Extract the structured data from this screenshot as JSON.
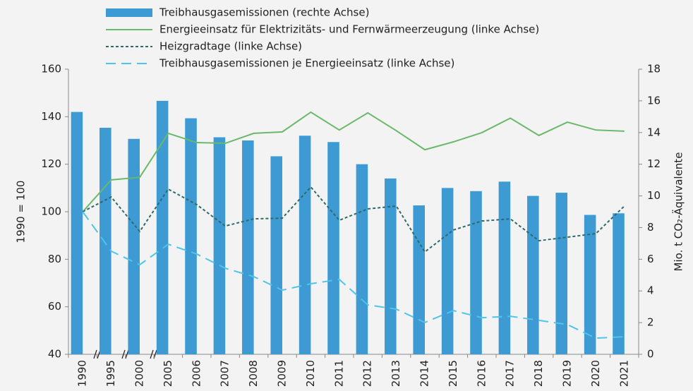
{
  "chart_data": {
    "type": "bar-line",
    "categories": [
      "1990",
      "1995",
      "2000",
      "2005",
      "2006",
      "2007",
      "2008",
      "2009",
      "2010",
      "2011",
      "2012",
      "2013",
      "2014",
      "2015",
      "2016",
      "2017",
      "2018",
      "2019",
      "2020",
      "2021"
    ],
    "series": [
      {
        "name": "Treibhausgasemissionen (rechte Achse)",
        "color": "#3d9ad3",
        "style": "bar",
        "axis": "y2",
        "values": [
          15.3,
          14.3,
          13.6,
          16.0,
          14.9,
          13.7,
          13.5,
          12.5,
          13.8,
          13.4,
          12.0,
          11.1,
          9.4,
          10.5,
          10.3,
          10.9,
          10.0,
          10.2,
          8.8,
          8.9
        ]
      },
      {
        "name": "Energieeinsatz für Elektrizitäts- und Fernwärmeerzeugung (linke Achse)",
        "color": "#6ab96a",
        "style": "solid",
        "axis": "y",
        "values": [
          100,
          113.4,
          114.5,
          133,
          129.1,
          128.8,
          133,
          133.6,
          141.9,
          134.4,
          141.6,
          134.1,
          126.1,
          129.4,
          133.3,
          139.4,
          132.1,
          137.7,
          134.4,
          133.9
        ]
      },
      {
        "name": "Heizgradtage (linke Achse)",
        "color": "#2e6a6a",
        "style": "dotted",
        "axis": "y",
        "values": [
          100,
          106.2,
          91.7,
          109.5,
          103,
          94,
          97,
          97.3,
          110.4,
          96.4,
          101.2,
          102.4,
          83.1,
          92.3,
          96.1,
          97,
          87.8,
          89.3,
          90.8,
          102.4
        ]
      },
      {
        "name": "Treibhausgasemissionen je Energieeinsatz (linke Achse)",
        "color": "#4fc4ea",
        "style": "dashed",
        "axis": "y",
        "values": [
          100,
          83.4,
          77.7,
          86.3,
          82.2,
          76.2,
          72.7,
          67,
          69.7,
          71.5,
          60.8,
          59,
          53.4,
          58.4,
          55.4,
          56,
          54.3,
          52.5,
          46.8,
          47.4
        ]
      }
    ],
    "ylabel": "1990 = 100",
    "y2label": "Mio. t CO₂-Äquivalente",
    "ylim": [
      40,
      160
    ],
    "yticks": [
      40,
      60,
      80,
      100,
      120,
      140,
      160
    ],
    "y2lim": [
      0,
      18
    ],
    "y2ticks": [
      0,
      2,
      4,
      6,
      8,
      10,
      12,
      14,
      16,
      18
    ],
    "grid": false
  }
}
